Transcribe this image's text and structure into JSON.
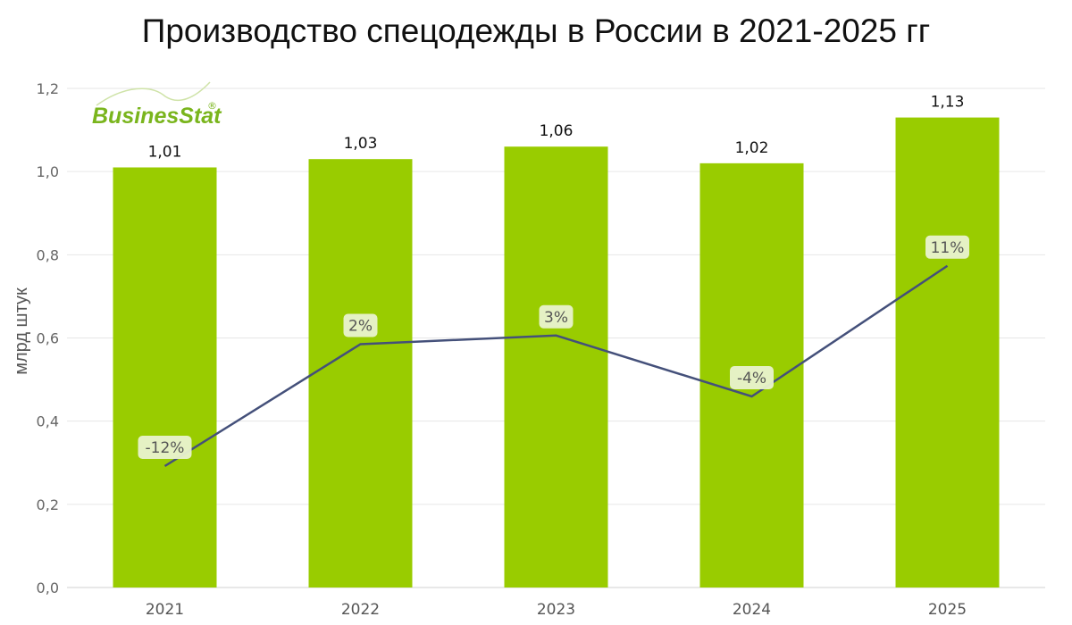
{
  "chart_data": {
    "type": "bar",
    "title": "Производство спецодежды в России в 2021-2025 гг",
    "ylabel": "млрд штук",
    "xlabel": "",
    "categories": [
      "2021",
      "2022",
      "2023",
      "2024",
      "2025"
    ],
    "series": [
      {
        "type": "bar",
        "values": [
          1.01,
          1.03,
          1.06,
          1.02,
          1.13
        ],
        "labels": [
          "1,01",
          "1,03",
          "1,06",
          "1,02",
          "1,13"
        ],
        "color": "#99CC00"
      },
      {
        "type": "line",
        "values": [
          -12,
          2,
          3,
          -4,
          11
        ],
        "labels": [
          "-12%",
          "2%",
          "3%",
          "-4%",
          "11%"
        ],
        "unit": "%",
        "color": "#44507A"
      }
    ],
    "ylim": [
      0,
      1.2
    ],
    "yticks": [
      "0,0",
      "0,2",
      "0,4",
      "0,6",
      "0,8",
      "1,0",
      "1,2"
    ],
    "grid": true,
    "legend": "none"
  },
  "logo": {
    "text_main": "Busines",
    "text_accent": "Stat",
    "mark": "®",
    "color": "#7AB51D"
  }
}
